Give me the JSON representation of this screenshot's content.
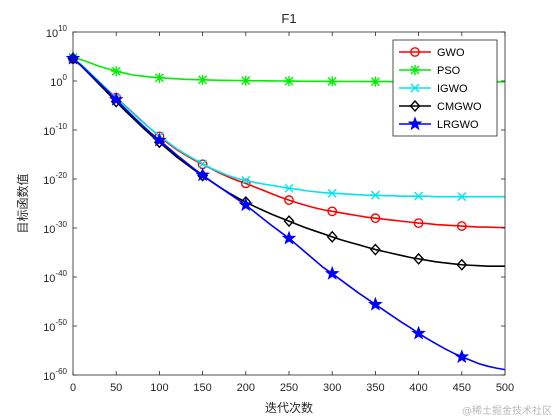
{
  "chart_data": {
    "type": "line",
    "title": "F1",
    "xlabel": "迭代次数",
    "ylabel": "目标函数值",
    "xlim": [
      0,
      500
    ],
    "ylim_exponent": [
      -60,
      10
    ],
    "y_scale": "log",
    "x_ticks": [
      0,
      50,
      100,
      150,
      200,
      250,
      300,
      350,
      400,
      450,
      500
    ],
    "y_tick_exponents": [
      10,
      0,
      -10,
      -20,
      -30,
      -40,
      -50,
      -60
    ],
    "y_tick_base": "10",
    "grid": false,
    "legend_position": "top-right",
    "x": [
      0,
      10,
      20,
      30,
      40,
      50,
      60,
      70,
      80,
      90,
      100,
      110,
      120,
      130,
      140,
      150,
      160,
      170,
      180,
      190,
      200,
      210,
      220,
      230,
      240,
      250,
      260,
      270,
      280,
      290,
      300,
      310,
      320,
      330,
      340,
      350,
      360,
      370,
      380,
      390,
      400,
      410,
      420,
      430,
      440,
      450,
      460,
      470,
      480,
      490,
      500
    ],
    "series": [
      {
        "name": "GWO",
        "color": "#ff0000",
        "marker": "circle",
        "log10_values": [
          4.5,
          3.2,
          1.6,
          -0.1,
          -1.8,
          -3.4,
          -5.0,
          -6.6,
          -8.2,
          -9.8,
          -11.3,
          -12.7,
          -14.0,
          -15.1,
          -16.1,
          -17.0,
          -17.9,
          -18.8,
          -19.6,
          -20.3,
          -20.9,
          -21.6,
          -22.3,
          -23.0,
          -23.7,
          -24.3,
          -24.9,
          -25.4,
          -25.9,
          -26.3,
          -26.6,
          -26.9,
          -27.2,
          -27.5,
          -27.8,
          -28.0,
          -28.2,
          -28.4,
          -28.6,
          -28.8,
          -29.0,
          -29.1,
          -29.3,
          -29.4,
          -29.5,
          -29.6,
          -29.7,
          -29.8,
          -29.8,
          -29.9,
          -29.9
        ]
      },
      {
        "name": "PSO",
        "color": "#00ee00",
        "marker": "asterisk",
        "log10_values": [
          4.8,
          4.3,
          3.7,
          3.0,
          2.5,
          2.0,
          1.6,
          1.2,
          1.0,
          0.8,
          0.65,
          0.55,
          0.45,
          0.35,
          0.3,
          0.25,
          0.2,
          0.15,
          0.12,
          0.1,
          0.08,
          0.05,
          0.03,
          0.02,
          0.0,
          -0.02,
          -0.04,
          -0.05,
          -0.06,
          -0.07,
          -0.08,
          -0.09,
          -0.1,
          -0.1,
          -0.11,
          -0.12,
          -0.12,
          -0.13,
          -0.13,
          -0.14,
          -0.14,
          -0.14,
          -0.15,
          -0.15,
          -0.15,
          -0.15,
          -0.16,
          -0.16,
          -0.16,
          -0.16,
          -0.16
        ]
      },
      {
        "name": "IGWO",
        "color": "#00e5ee",
        "marker": "x",
        "log10_values": [
          4.6,
          3.3,
          1.6,
          -0.1,
          -1.8,
          -3.5,
          -5.1,
          -6.7,
          -8.3,
          -9.8,
          -11.2,
          -12.5,
          -13.8,
          -14.9,
          -15.9,
          -16.9,
          -17.8,
          -18.6,
          -19.3,
          -19.9,
          -20.3,
          -20.7,
          -21.0,
          -21.3,
          -21.6,
          -21.9,
          -22.1,
          -22.4,
          -22.6,
          -22.8,
          -22.9,
          -23.0,
          -23.1,
          -23.2,
          -23.3,
          -23.3,
          -23.4,
          -23.4,
          -23.5,
          -23.5,
          -23.5,
          -23.5,
          -23.6,
          -23.6,
          -23.6,
          -23.6,
          -23.6,
          -23.6,
          -23.6,
          -23.6,
          -23.6
        ]
      },
      {
        "name": "CMGWO",
        "color": "#000000",
        "marker": "diamond",
        "log10_values": [
          4.6,
          3.0,
          1.2,
          -0.6,
          -2.4,
          -4.2,
          -6.0,
          -7.7,
          -9.4,
          -11.0,
          -12.5,
          -14.0,
          -15.5,
          -16.8,
          -18.1,
          -19.3,
          -20.5,
          -21.7,
          -22.8,
          -23.8,
          -24.7,
          -25.6,
          -26.4,
          -27.2,
          -27.9,
          -28.6,
          -29.3,
          -30.0,
          -30.6,
          -31.2,
          -31.8,
          -32.4,
          -32.9,
          -33.4,
          -33.9,
          -34.4,
          -34.8,
          -35.2,
          -35.6,
          -36.0,
          -36.3,
          -36.6,
          -36.9,
          -37.1,
          -37.3,
          -37.5,
          -37.6,
          -37.7,
          -37.8,
          -37.8,
          -37.8
        ]
      },
      {
        "name": "LRGWO",
        "color": "#0000ff",
        "marker": "star",
        "log10_values": [
          4.6,
          3.1,
          1.4,
          -0.3,
          -2.0,
          -3.8,
          -5.6,
          -7.3,
          -9.0,
          -10.6,
          -12.1,
          -13.6,
          -15.1,
          -16.5,
          -17.9,
          -19.2,
          -20.5,
          -21.7,
          -22.9,
          -24.1,
          -25.3,
          -26.7,
          -28.1,
          -29.5,
          -30.8,
          -32.1,
          -33.6,
          -35.1,
          -36.6,
          -38.1,
          -39.3,
          -40.6,
          -41.9,
          -43.2,
          -44.4,
          -45.6,
          -46.8,
          -48.0,
          -49.2,
          -50.3,
          -51.5,
          -52.6,
          -53.6,
          -54.6,
          -55.5,
          -56.3,
          -57.0,
          -57.7,
          -58.2,
          -58.6,
          -58.9
        ]
      }
    ]
  },
  "watermark": "@稀土掘金技术社区"
}
